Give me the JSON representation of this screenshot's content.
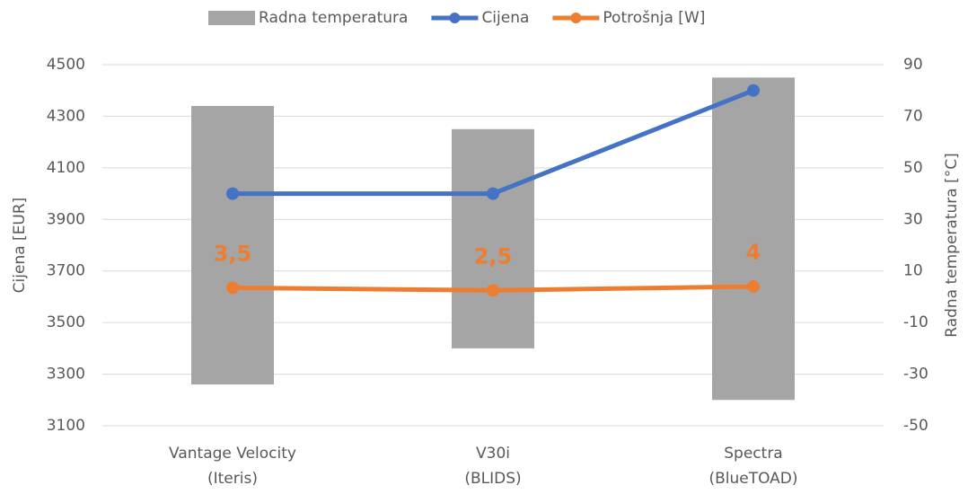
{
  "chart_data": {
    "type": "combo",
    "categories": [
      [
        "Vantage Velocity",
        "(Iteris)"
      ],
      [
        "V30i",
        "(BLIDS)"
      ],
      [
        "Spectra",
        "(BlueTOAD)"
      ]
    ],
    "ylabel": "Cijena [EUR]",
    "y2label": "Radna temperatura [°C]",
    "ylim": [
      3100,
      4500
    ],
    "yticks": [
      3100,
      3300,
      3500,
      3700,
      3900,
      4100,
      4300,
      4500
    ],
    "y2lim": [
      -50,
      90
    ],
    "y2ticks": [
      -50,
      -30,
      -10,
      10,
      30,
      50,
      70,
      90
    ],
    "grid": true,
    "legend": "top",
    "series": [
      {
        "name": "Radna temperatura",
        "kind": "range-bar",
        "axis": "y2",
        "color": "#a5a5a5",
        "low": [
          -34,
          -20,
          -40
        ],
        "high": [
          74,
          65,
          85
        ]
      },
      {
        "name": "Cijena",
        "kind": "line",
        "axis": "y",
        "color": "#4472c4",
        "values": [
          4000,
          4000,
          4400
        ]
      },
      {
        "name": "Potrošnja [W]",
        "kind": "line",
        "axis": "y2",
        "color": "#ed7d31",
        "values": [
          3.5,
          2.5,
          4
        ],
        "value_labels": [
          "3,5",
          "2,5",
          "4"
        ]
      }
    ]
  }
}
